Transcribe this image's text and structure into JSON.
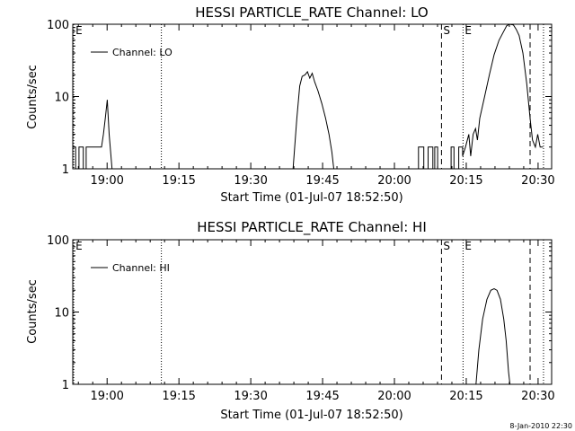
{
  "footer": {
    "date_stamp": "8-Jan-2010 22:30"
  },
  "chart_data": [
    {
      "type": "line",
      "title": "HESSI PARTICLE_RATE Channel: LO",
      "xlabel": "Start Time (01-Jul-07 18:52:50)",
      "ylabel": "Counts/sec",
      "x_unit": "minutes after 18:52:50",
      "xlim": [
        0,
        100
      ],
      "ylim": [
        1,
        100
      ],
      "y_scale": "log",
      "x_ticks": [
        {
          "at": 7.17,
          "label": "19:00"
        },
        {
          "at": 22.17,
          "label": "19:15"
        },
        {
          "at": 37.17,
          "label": "19:30"
        },
        {
          "at": 52.17,
          "label": "19:45"
        },
        {
          "at": 67.17,
          "label": "20:00"
        },
        {
          "at": 82.17,
          "label": "20:15"
        },
        {
          "at": 97.17,
          "label": "20:30"
        }
      ],
      "y_ticks": [
        {
          "at": 1,
          "label": "1"
        },
        {
          "at": 10,
          "label": "10"
        },
        {
          "at": 100,
          "label": "100"
        }
      ],
      "legend": {
        "label": "Channel: LO",
        "position": "top-left"
      },
      "markers": [
        {
          "at": 0.2,
          "style": "dotted",
          "label": "E"
        },
        {
          "at": 18.5,
          "style": "dotted",
          "label": ""
        },
        {
          "at": 77.0,
          "style": "dashed",
          "label": "S"
        },
        {
          "at": 81.5,
          "style": "dotted",
          "label": "E"
        },
        {
          "at": 95.5,
          "style": "dashed",
          "label": ""
        },
        {
          "at": 98.3,
          "style": "dotted",
          "label": ""
        }
      ],
      "series": [
        {
          "name": "Channel: LO",
          "segments": [
            [
              [
                0,
                1
              ],
              [
                0,
                2
              ],
              [
                0.6,
                2
              ],
              [
                0.6,
                1
              ],
              [
                1.3,
                1
              ],
              [
                1.3,
                2
              ],
              [
                2.2,
                2
              ],
              [
                2.2,
                1
              ],
              [
                2.8,
                1
              ],
              [
                2.8,
                2
              ],
              [
                6.0,
                2
              ],
              [
                6.4,
                3
              ],
              [
                6.8,
                5
              ],
              [
                7.2,
                9
              ],
              [
                7.6,
                3
              ],
              [
                8.2,
                1
              ]
            ],
            [
              [
                46.0,
                1
              ],
              [
                46.8,
                5
              ],
              [
                47.4,
                14
              ],
              [
                47.9,
                19
              ],
              [
                48.5,
                20
              ],
              [
                49.0,
                22
              ],
              [
                49.5,
                18
              ],
              [
                50.0,
                21
              ],
              [
                50.5,
                16
              ],
              [
                51.2,
                12
              ],
              [
                52.0,
                8
              ],
              [
                52.8,
                5
              ],
              [
                53.5,
                3
              ],
              [
                54.1,
                1.7
              ],
              [
                54.5,
                1
              ]
            ],
            [
              [
                72.2,
                1
              ],
              [
                72.2,
                2
              ],
              [
                73.3,
                2
              ],
              [
                73.3,
                1
              ],
              [
                74.2,
                1
              ],
              [
                74.2,
                2
              ],
              [
                75.2,
                2
              ],
              [
                75.2,
                1
              ],
              [
                75.6,
                1
              ],
              [
                75.6,
                2
              ],
              [
                76.2,
                2
              ],
              [
                76.2,
                1
              ]
            ],
            [
              [
                79.0,
                1
              ],
              [
                79.0,
                2
              ],
              [
                79.6,
                2
              ],
              [
                79.6,
                1
              ],
              [
                80.6,
                1
              ],
              [
                80.6,
                2
              ],
              [
                81.4,
                2
              ],
              [
                81.4,
                1.5
              ],
              [
                82.0,
                2
              ],
              [
                82.7,
                3
              ],
              [
                83.1,
                1.5
              ],
              [
                83.6,
                3
              ],
              [
                84.1,
                3.6
              ],
              [
                84.5,
                2.5
              ],
              [
                85.0,
                5
              ],
              [
                86.0,
                10
              ],
              [
                87.0,
                20
              ],
              [
                88.0,
                38
              ],
              [
                89.0,
                60
              ],
              [
                90.0,
                80
              ],
              [
                90.6,
                95
              ],
              [
                91.2,
                100
              ],
              [
                92.0,
                98
              ],
              [
                92.6,
                85
              ],
              [
                93.2,
                70
              ],
              [
                94.0,
                40
              ],
              [
                94.8,
                15
              ],
              [
                95.5,
                5
              ],
              [
                96.0,
                2.5
              ],
              [
                96.6,
                2
              ],
              [
                97.1,
                3
              ],
              [
                97.6,
                2
              ],
              [
                98.2,
                2
              ]
            ]
          ]
        }
      ]
    },
    {
      "type": "line",
      "title": "HESSI PARTICLE_RATE Channel: HI",
      "xlabel": "Start Time (01-Jul-07 18:52:50)",
      "ylabel": "Counts/sec",
      "x_unit": "minutes after 18:52:50",
      "xlim": [
        0,
        100
      ],
      "ylim": [
        1,
        100
      ],
      "y_scale": "log",
      "x_ticks": [
        {
          "at": 7.17,
          "label": "19:00"
        },
        {
          "at": 22.17,
          "label": "19:15"
        },
        {
          "at": 37.17,
          "label": "19:30"
        },
        {
          "at": 52.17,
          "label": "19:45"
        },
        {
          "at": 67.17,
          "label": "20:00"
        },
        {
          "at": 82.17,
          "label": "20:15"
        },
        {
          "at": 97.17,
          "label": "20:30"
        }
      ],
      "y_ticks": [
        {
          "at": 1,
          "label": "1"
        },
        {
          "at": 10,
          "label": "10"
        },
        {
          "at": 100,
          "label": "100"
        }
      ],
      "legend": {
        "label": "Channel: HI",
        "position": "top-left"
      },
      "markers": [
        {
          "at": 0.2,
          "style": "dotted",
          "label": "E"
        },
        {
          "at": 18.5,
          "style": "dotted",
          "label": ""
        },
        {
          "at": 77.0,
          "style": "dashed",
          "label": "S"
        },
        {
          "at": 81.5,
          "style": "dotted",
          "label": "E"
        },
        {
          "at": 95.5,
          "style": "dashed",
          "label": ""
        },
        {
          "at": 98.3,
          "style": "dotted",
          "label": ""
        }
      ],
      "series": [
        {
          "name": "Channel: HI",
          "segments": [
            [
              [
                84.2,
                1
              ],
              [
                84.8,
                3
              ],
              [
                85.6,
                8
              ],
              [
                86.5,
                15
              ],
              [
                87.3,
                20
              ],
              [
                88.0,
                21
              ],
              [
                88.6,
                20
              ],
              [
                89.3,
                15
              ],
              [
                90.0,
                8
              ],
              [
                90.5,
                4
              ],
              [
                91.0,
                1.5
              ],
              [
                91.3,
                1
              ]
            ]
          ]
        }
      ]
    }
  ]
}
